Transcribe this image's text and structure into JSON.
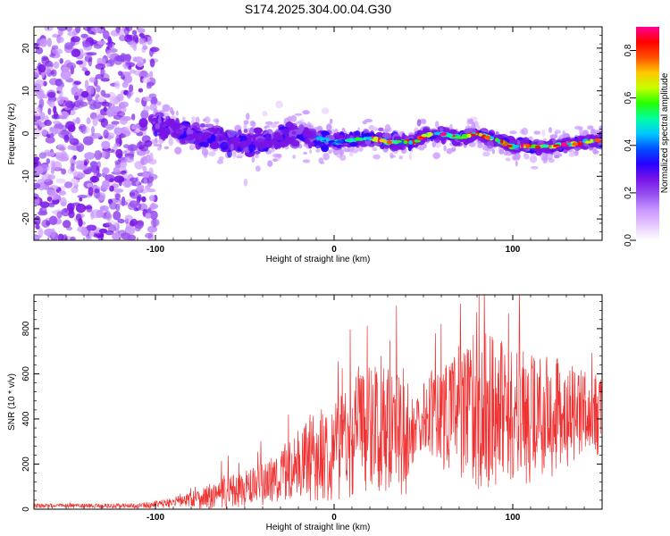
{
  "title": "S174.2025.304.00.04.G30",
  "colors": {
    "snr_line": "#f03232",
    "frame": "#000000",
    "spectrogram_palette": [
      "#ffffff",
      "#e6c8ff",
      "#c896ff",
      "#9650f0",
      "#7814e6",
      "#2800ff",
      "#0050ff",
      "#00c8ff",
      "#00ffa0",
      "#28ff00",
      "#c8ff00",
      "#ffc800",
      "#ff5000",
      "#ff0000",
      "#ff0096"
    ]
  },
  "chart_data": [
    {
      "type": "heatmap",
      "name": "spectrogram",
      "xlabel": "Height of straight line (km)",
      "ylabel": "Frequency (Hz)",
      "xlim": [
        -168,
        150
      ],
      "ylim": [
        -25,
        25
      ],
      "x_ticks": [
        -100,
        0,
        100
      ],
      "y_ticks": [
        -20,
        -10,
        0,
        10,
        20
      ],
      "ridge": {
        "description_points_x": [
          -100,
          -80,
          -60,
          -40,
          -20,
          0,
          20,
          30,
          45,
          50,
          60,
          70,
          80,
          100,
          120,
          140,
          150
        ],
        "description_points_y": [
          2,
          0,
          -2,
          -2,
          0,
          -2,
          -1,
          -2,
          -2,
          -0.5,
          0,
          -1,
          0,
          -3,
          -3,
          -2,
          -1.5
        ]
      },
      "colorbar": {
        "label": "Normalized spectral amplitude",
        "range": [
          0.0,
          0.9
        ],
        "ticks": [
          0.0,
          0.2,
          0.4,
          0.6,
          0.8
        ],
        "tick_labels": [
          "0.0",
          "0.2",
          "0.4",
          "0.6",
          "0.8"
        ]
      }
    },
    {
      "type": "line",
      "name": "snr",
      "xlabel": "Height of straight line (km)",
      "ylabel": "SNR (10 * v/v)",
      "xlim": [
        -168,
        150
      ],
      "ylim": [
        0,
        950
      ],
      "x_ticks": [
        -100,
        0,
        100
      ],
      "y_ticks": [
        0,
        200,
        400,
        600,
        800
      ],
      "envelope_x": [
        -168,
        -110,
        -100,
        -90,
        -80,
        -70,
        -60,
        -50,
        -40,
        -30,
        -20,
        -10,
        0,
        10,
        20,
        30,
        40,
        45,
        50,
        60,
        70,
        80,
        90,
        100,
        110,
        120,
        130,
        140,
        150
      ],
      "envelope_mid": [
        15,
        15,
        20,
        30,
        45,
        55,
        70,
        90,
        110,
        150,
        200,
        230,
        270,
        320,
        380,
        380,
        300,
        350,
        420,
        430,
        440,
        430,
        450,
        420,
        400,
        410,
        420,
        410,
        420
      ],
      "envelope_amp": [
        10,
        10,
        15,
        25,
        35,
        60,
        80,
        80,
        100,
        120,
        150,
        200,
        230,
        270,
        300,
        300,
        250,
        120,
        150,
        250,
        300,
        350,
        350,
        300,
        300,
        280,
        240,
        200,
        180
      ]
    }
  ]
}
